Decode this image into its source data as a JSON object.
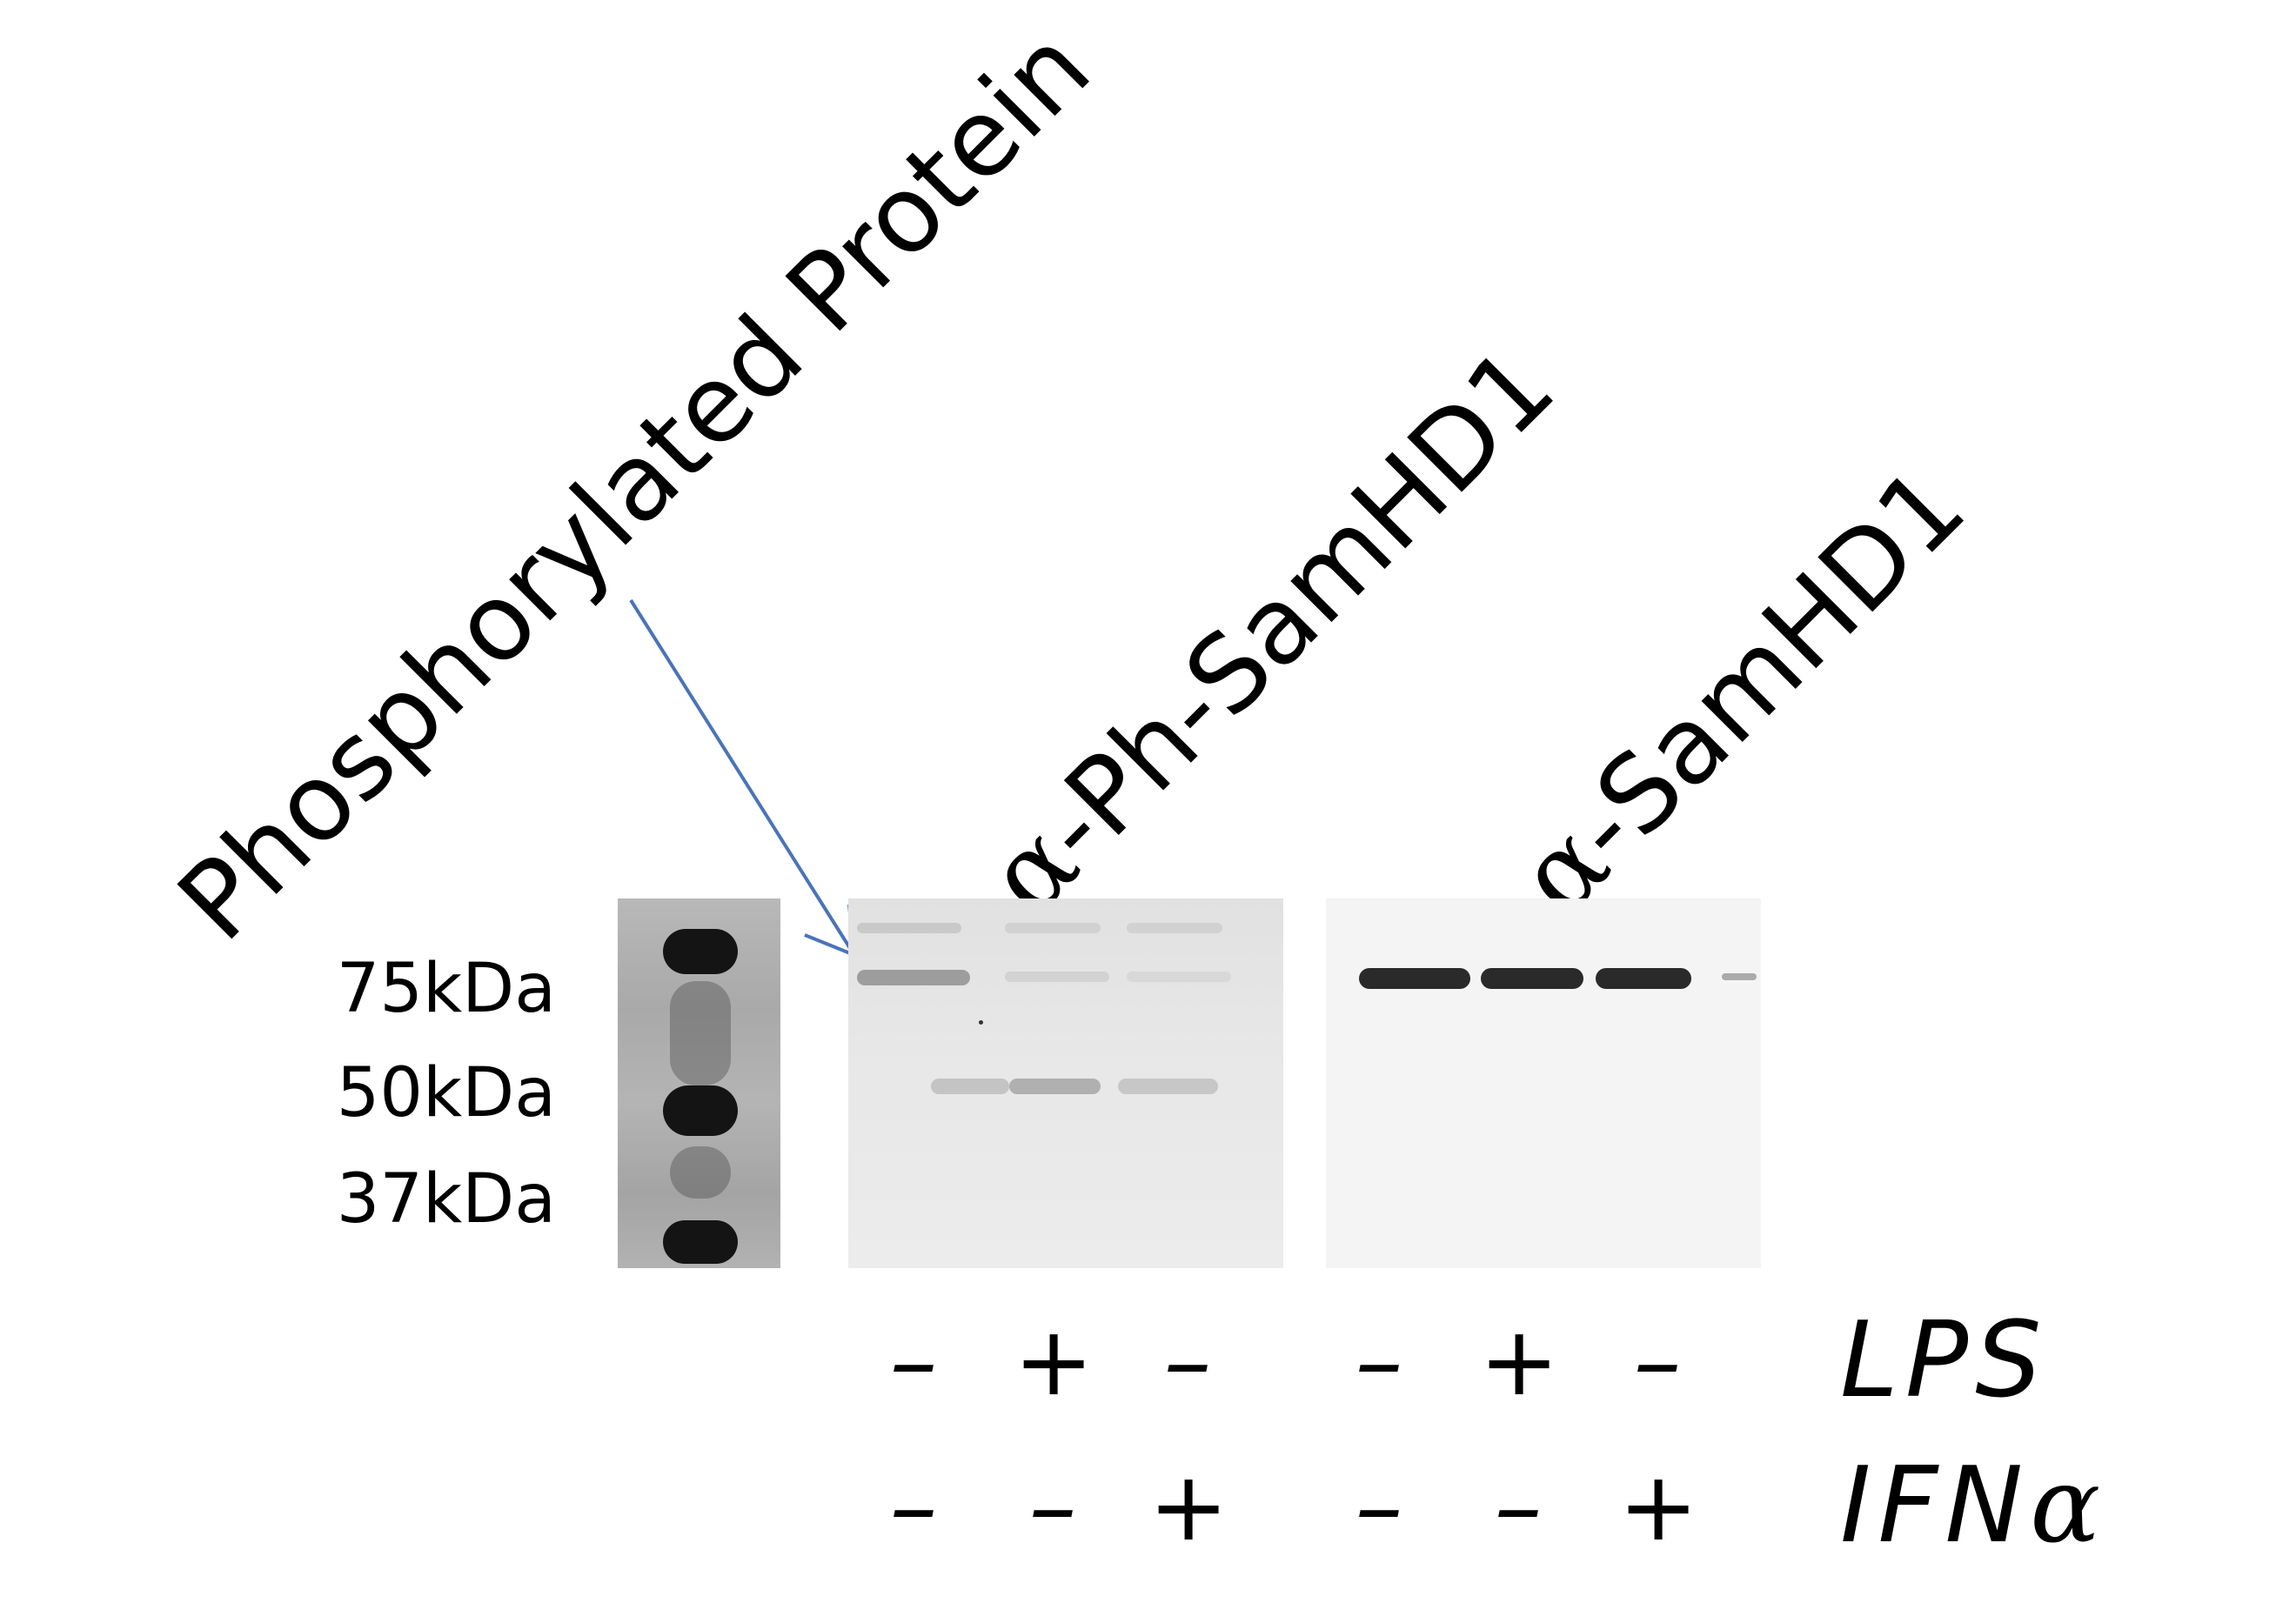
{
  "labels": {
    "phospho": "Phosphorylated Protein",
    "ph_samhd1_alpha": "α",
    "ph_samhd1_rest": "-Ph-SamHD1",
    "samhd1_alpha": "α",
    "samhd1_rest": "-SamHD1"
  },
  "markers": [
    "75kDa",
    "50kDa",
    "37kDa"
  ],
  "treatments": {
    "lps_label": "LPS",
    "ifn_label_main": "IFN",
    "ifn_label_greek": "α",
    "lps": [
      "–",
      "+",
      "–",
      "–",
      "+",
      "–"
    ],
    "ifn": [
      "–",
      "–",
      "+",
      "–",
      "–",
      "+"
    ]
  },
  "band_levels": {
    "ph_samhd1_75kda": [
      0.45,
      0.12,
      0.08
    ],
    "ph_samhd1_50kda": [
      0.25,
      0.35,
      0.22
    ],
    "samhd1_75kda": [
      1.0,
      1.0,
      1.0,
      0.15
    ]
  },
  "colors": {
    "arrow": "#4a74b8",
    "band": "#1a1a1a",
    "background": "#ffffff"
  }
}
